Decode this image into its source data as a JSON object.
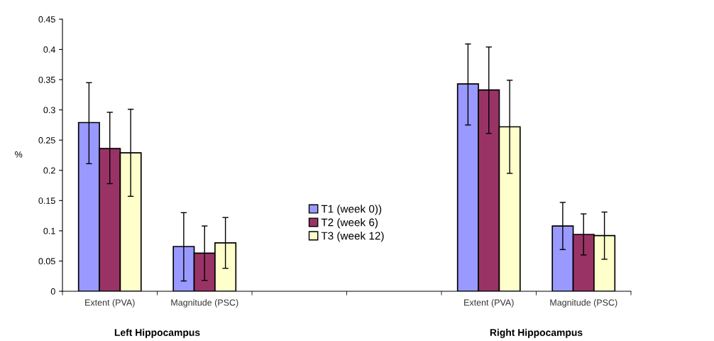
{
  "chart_data": {
    "type": "bar",
    "ylabel": "%",
    "categories": [
      "Extent (PVA)",
      "Magnitude (PSC)",
      null,
      null,
      "Extent (PVA)",
      "Magnitude (PSC)"
    ],
    "series": [
      {
        "name": "T1 (week 0))",
        "color": "#9999ff",
        "values": [
          0.279,
          0.074,
          null,
          null,
          0.343,
          0.108
        ],
        "errors": [
          [
            0.211,
            0.345
          ],
          [
            0.017,
            0.13
          ],
          null,
          null,
          [
            0.275,
            0.409
          ],
          [
            0.069,
            0.147
          ]
        ]
      },
      {
        "name": "T2 (week 6)",
        "color": "#993366",
        "values": [
          0.236,
          0.063,
          null,
          null,
          0.333,
          0.094
        ],
        "errors": [
          [
            0.178,
            0.296
          ],
          [
            0.018,
            0.108
          ],
          null,
          null,
          [
            0.261,
            0.404
          ],
          [
            0.06,
            0.128
          ]
        ]
      },
      {
        "name": "T3 (week 12)",
        "color": "#ffffcc",
        "values": [
          0.229,
          0.08,
          null,
          null,
          0.272,
          0.092
        ],
        "errors": [
          [
            0.157,
            0.301
          ],
          [
            0.038,
            0.122
          ],
          null,
          null,
          [
            0.195,
            0.349
          ],
          [
            0.053,
            0.131
          ]
        ]
      }
    ],
    "ylim": [
      0,
      0.45
    ],
    "yticks": [
      0,
      0.05,
      0.1,
      0.15,
      0.2,
      0.25,
      0.3,
      0.35,
      0.4,
      0.45
    ],
    "annotations": [
      "Left Hippocampus",
      "Right Hippocampus"
    ],
    "grid": false,
    "legend": "center"
  }
}
